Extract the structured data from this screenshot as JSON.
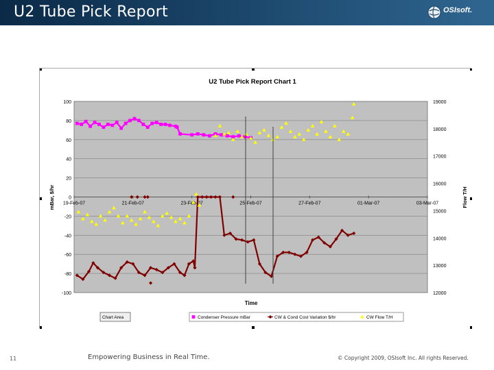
{
  "slide": {
    "title": "U2 Tube Pick Report",
    "page_number": "11",
    "tagline": "Empowering Business in Real Time.",
    "copyright": "© Copyright 2009, OSIsoft Inc. All rights Reserved.",
    "logo_text": "OSIsoft."
  },
  "colors": {
    "header_dark": "#0b2a47",
    "header_light": "#2f6690",
    "plot_bg": "#c0c0c0",
    "pressure": "#ff00ff",
    "cost": "#800000",
    "flow": "#ffff00"
  },
  "chart_data": {
    "type": "scatter",
    "title": "U2 Tube Pick Report Chart 1",
    "xlabel": "Time",
    "ylabel": "mBar, $/hr",
    "y2label": "Flow T/H",
    "xlim": [
      "2007-02-19",
      "2007-03-03"
    ],
    "x_ticks": [
      "19-Feb-07",
      "21-Feb-07",
      "23-Feb-07",
      "25-Feb-07",
      "27-Feb-07",
      "01-Mar-07",
      "03-Mar-07"
    ],
    "ylim": [
      -100,
      100
    ],
    "y_ticks": [
      "100",
      "80",
      "60",
      "40",
      "20",
      "0",
      "-20",
      "-40",
      "-60",
      "-80",
      "-100"
    ],
    "y2lim": [
      12000,
      19000
    ],
    "y2_ticks": [
      "19000",
      "18000",
      "17000",
      "16000",
      "15000",
      "14000",
      "13000",
      "12000"
    ],
    "grid": true,
    "legend_position": "bottom",
    "chart_area_label": "Chart Area",
    "series": [
      {
        "name": "Condenser Pressure mBar",
        "axis": "left",
        "marker": "square",
        "points": [
          [
            0.2,
            77
          ],
          [
            0.5,
            76
          ],
          [
            0.8,
            79
          ],
          [
            1.1,
            74
          ],
          [
            1.4,
            78
          ],
          [
            1.7,
            76
          ],
          [
            2.0,
            73
          ],
          [
            2.3,
            76
          ],
          [
            2.6,
            75
          ],
          [
            2.9,
            78
          ],
          [
            3.2,
            72
          ],
          [
            3.5,
            77
          ],
          [
            3.8,
            80
          ],
          [
            4.1,
            82
          ],
          [
            4.4,
            80
          ],
          [
            4.7,
            76
          ],
          [
            5.0,
            73
          ],
          [
            5.3,
            77
          ],
          [
            5.6,
            78
          ],
          [
            5.9,
            76
          ],
          [
            6.2,
            76
          ],
          [
            6.5,
            75
          ],
          [
            6.9,
            74
          ],
          [
            7.0,
            73
          ],
          [
            7.2,
            66
          ],
          [
            8.0,
            65
          ],
          [
            8.4,
            66
          ],
          [
            8.8,
            65
          ],
          [
            9.2,
            64
          ],
          [
            9.6,
            66
          ],
          [
            10.0,
            65
          ],
          [
            10.4,
            64
          ],
          [
            10.8,
            63
          ],
          [
            11.2,
            64
          ],
          [
            11.6,
            63
          ],
          [
            12.0,
            62
          ]
        ]
      },
      {
        "name": "CW & Cond Cost Variation $/hr",
        "axis": "left",
        "marker": "diamond",
        "points": [
          [
            0.2,
            -82
          ],
          [
            0.6,
            -86
          ],
          [
            1.0,
            -78
          ],
          [
            1.3,
            -69
          ],
          [
            1.6,
            -74
          ],
          [
            2.0,
            -79
          ],
          [
            2.4,
            -82
          ],
          [
            2.8,
            -85
          ],
          [
            3.2,
            -74
          ],
          [
            3.6,
            -68
          ],
          [
            4.0,
            -70
          ],
          [
            4.4,
            -79
          ],
          [
            4.8,
            -82
          ],
          [
            5.2,
            -74
          ],
          [
            5.6,
            -76
          ],
          [
            6.0,
            -79
          ],
          [
            6.4,
            -74
          ],
          [
            6.8,
            -70
          ],
          [
            7.2,
            -79
          ],
          [
            7.5,
            -82
          ],
          [
            7.8,
            -70
          ],
          [
            8.1,
            -67
          ],
          [
            8.2,
            -74
          ],
          [
            8.4,
            0
          ],
          [
            8.7,
            0
          ],
          [
            9.0,
            0
          ],
          [
            9.3,
            0
          ],
          [
            9.6,
            0
          ],
          [
            9.9,
            0
          ],
          [
            10.2,
            -40
          ],
          [
            10.6,
            -38
          ],
          [
            11.0,
            -44
          ],
          [
            11.4,
            -45
          ],
          [
            11.8,
            -47
          ],
          [
            12.2,
            -45
          ],
          [
            12.6,
            -70
          ],
          [
            13.0,
            -79
          ],
          [
            13.4,
            -83
          ],
          [
            13.8,
            -62
          ],
          [
            14.2,
            -58
          ],
          [
            14.6,
            -58
          ],
          [
            15.0,
            -60
          ],
          [
            15.4,
            -62
          ],
          [
            15.8,
            -58
          ],
          [
            16.2,
            -45
          ],
          [
            16.6,
            -42
          ],
          [
            17.0,
            -48
          ],
          [
            17.4,
            -52
          ],
          [
            17.8,
            -44
          ],
          [
            18.2,
            -35
          ],
          [
            18.6,
            -40
          ],
          [
            19.0,
            -38
          ]
        ],
        "outliers": [
          [
            3.9,
            0
          ],
          [
            4.3,
            0
          ],
          [
            4.8,
            0
          ],
          [
            5.0,
            0
          ],
          [
            10.8,
            0
          ],
          [
            5.2,
            -90
          ]
        ]
      },
      {
        "name": "CW Flow T/H",
        "axis": "right",
        "marker": "triangle",
        "points": [
          [
            0.3,
            14950
          ],
          [
            0.6,
            14700
          ],
          [
            0.9,
            14850
          ],
          [
            1.2,
            14600
          ],
          [
            1.5,
            14500
          ],
          [
            1.8,
            14800
          ],
          [
            2.1,
            14650
          ],
          [
            2.4,
            14950
          ],
          [
            2.7,
            15100
          ],
          [
            3.0,
            14800
          ],
          [
            3.3,
            14550
          ],
          [
            3.6,
            14800
          ],
          [
            3.9,
            14650
          ],
          [
            4.2,
            14500
          ],
          [
            4.5,
            14700
          ],
          [
            4.8,
            14950
          ],
          [
            5.1,
            14750
          ],
          [
            5.4,
            14600
          ],
          [
            5.7,
            14450
          ],
          [
            6.0,
            14800
          ],
          [
            6.3,
            14900
          ],
          [
            6.6,
            14750
          ],
          [
            6.9,
            14600
          ],
          [
            7.2,
            14700
          ],
          [
            7.5,
            14550
          ],
          [
            7.8,
            14800
          ],
          [
            8.1,
            15300
          ],
          [
            8.3,
            15600
          ],
          [
            8.5,
            15200
          ],
          [
            9.6,
            17750
          ],
          [
            9.9,
            18100
          ],
          [
            10.2,
            17800
          ],
          [
            10.5,
            17850
          ],
          [
            10.8,
            17600
          ],
          [
            11.1,
            17900
          ],
          [
            11.4,
            17700
          ],
          [
            11.7,
            17800
          ],
          [
            12.0,
            17650
          ],
          [
            12.3,
            17500
          ],
          [
            12.6,
            17850
          ],
          [
            12.9,
            17950
          ],
          [
            13.2,
            17750
          ],
          [
            13.5,
            17600
          ],
          [
            13.8,
            17700
          ],
          [
            14.1,
            18050
          ],
          [
            14.4,
            18200
          ],
          [
            14.7,
            17900
          ],
          [
            15.0,
            17700
          ],
          [
            15.3,
            17800
          ],
          [
            15.6,
            17600
          ],
          [
            15.9,
            17950
          ],
          [
            16.2,
            18100
          ],
          [
            16.5,
            17800
          ],
          [
            16.8,
            18250
          ],
          [
            17.1,
            17900
          ],
          [
            17.4,
            17700
          ],
          [
            17.7,
            18100
          ],
          [
            18.0,
            17600
          ],
          [
            18.3,
            17900
          ],
          [
            18.6,
            17800
          ],
          [
            18.9,
            18400
          ],
          [
            19.0,
            18900
          ]
        ]
      }
    ]
  }
}
